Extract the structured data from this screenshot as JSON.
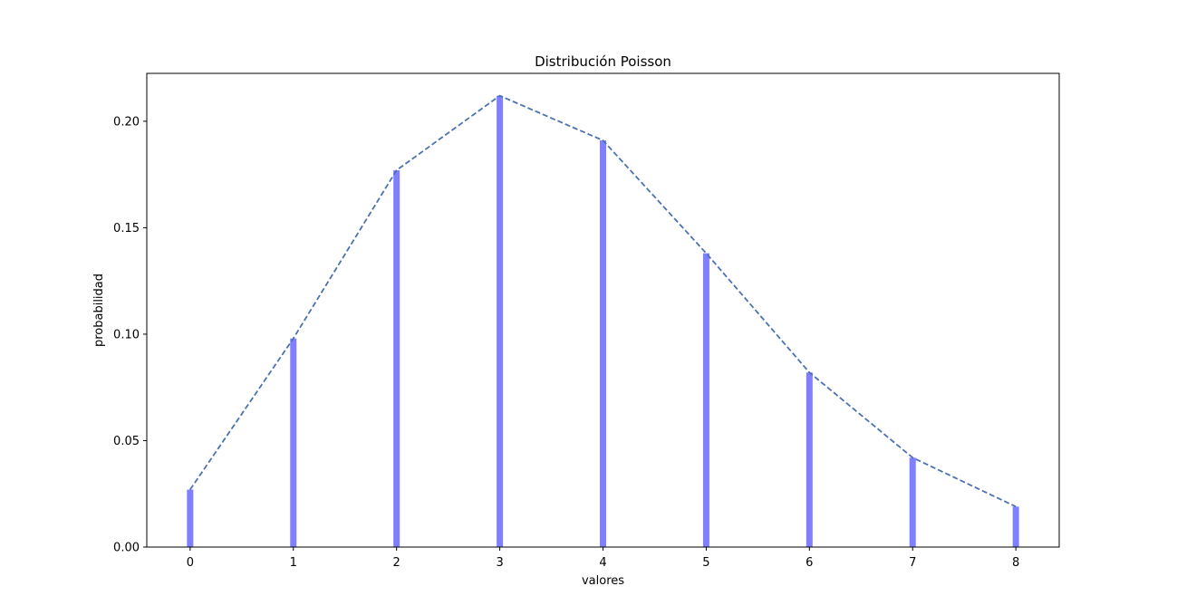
{
  "chart_data": {
    "type": "bar",
    "title": "Distribución Poisson",
    "xlabel": "valores",
    "ylabel": "probabilidad",
    "categories": [
      "0",
      "1",
      "2",
      "3",
      "4",
      "5",
      "6",
      "7",
      "8"
    ],
    "x": [
      0,
      1,
      2,
      3,
      4,
      5,
      6,
      7,
      8
    ],
    "values": [
      0.027,
      0.098,
      0.177,
      0.212,
      0.191,
      0.138,
      0.082,
      0.042,
      0.019
    ],
    "xlim": [
      -0.42,
      8.42
    ],
    "ylim": [
      0.0,
      0.2225
    ],
    "yticks": [
      0.0,
      0.05,
      0.1,
      0.15,
      0.2
    ],
    "ytick_labels": [
      "0.00",
      "0.05",
      "0.10",
      "0.15",
      "0.20"
    ],
    "grid": false,
    "overlay_line": {
      "style": "dashed",
      "color": "#4c72b0"
    },
    "bar_color": "#8080ff",
    "frame_color": "#000000"
  }
}
